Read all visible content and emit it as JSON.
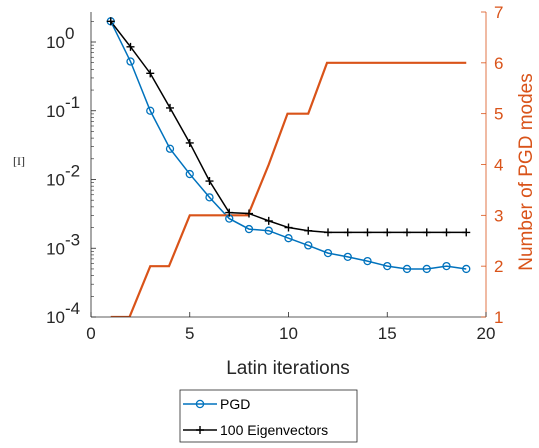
{
  "chart_data": {
    "type": "line",
    "title": "",
    "xlabel": "Latin iterations",
    "ylabel_left": "[I]",
    "ylabel_right": "Number of PGD modes",
    "xlim": [
      0,
      20
    ],
    "ylim_left": [
      0.0001,
      2
    ],
    "yscale_left": "log",
    "ylim_right": [
      1,
      7
    ],
    "x_ticks": [
      "0",
      "5",
      "10",
      "15",
      "20"
    ],
    "y_left_ticks": [
      {
        "base": "10",
        "exp": "0"
      },
      {
        "base": "10",
        "exp": "-1"
      },
      {
        "base": "10",
        "exp": "-2"
      },
      {
        "base": "10",
        "exp": "-3"
      },
      {
        "base": "10",
        "exp": "-4"
      }
    ],
    "y_right_ticks": [
      "1",
      "2",
      "3",
      "4",
      "5",
      "6",
      "7"
    ],
    "grid": false,
    "legend_position": "bottom-outside",
    "legend": [
      "PGD",
      "100 Eigenvectors"
    ],
    "series": [
      {
        "name": "PGD",
        "axis": "left",
        "marker": "circle",
        "color": "#0072BD",
        "x": [
          1,
          2,
          3,
          4,
          5,
          6,
          7,
          8,
          9,
          10,
          11,
          12,
          13,
          14,
          15,
          16,
          17,
          18,
          19
        ],
        "y": [
          2.0,
          0.52,
          0.1,
          0.028,
          0.012,
          0.0055,
          0.0027,
          0.0019,
          0.0018,
          0.0014,
          0.0011,
          0.00085,
          0.00075,
          0.00065,
          0.00055,
          0.0005,
          0.0005,
          0.00055,
          0.0005
        ]
      },
      {
        "name": "100 Eigenvectors",
        "axis": "left",
        "marker": "plus",
        "color": "#000000",
        "x": [
          1,
          2,
          3,
          4,
          5,
          6,
          7,
          8,
          9,
          10,
          11,
          12,
          13,
          14,
          15,
          16,
          17,
          18,
          19
        ],
        "y": [
          2.0,
          0.85,
          0.35,
          0.11,
          0.034,
          0.0095,
          0.0033,
          0.0032,
          0.0025,
          0.002,
          0.0018,
          0.0017,
          0.0017,
          0.0017,
          0.0017,
          0.0017,
          0.0017,
          0.0017,
          0.0017
        ]
      },
      {
        "name": "",
        "axis": "right",
        "marker": "none",
        "color": "#D95319",
        "x": [
          1,
          1.95,
          3,
          3.95,
          5,
          5.95,
          7,
          7.95,
          9,
          9.95,
          11,
          11.95,
          13,
          14,
          15,
          16,
          17,
          18,
          19
        ],
        "y": [
          1,
          1,
          2,
          2,
          3,
          3,
          3,
          3,
          4,
          5,
          5,
          6,
          6,
          6,
          6,
          6,
          6,
          6,
          6
        ]
      }
    ]
  }
}
